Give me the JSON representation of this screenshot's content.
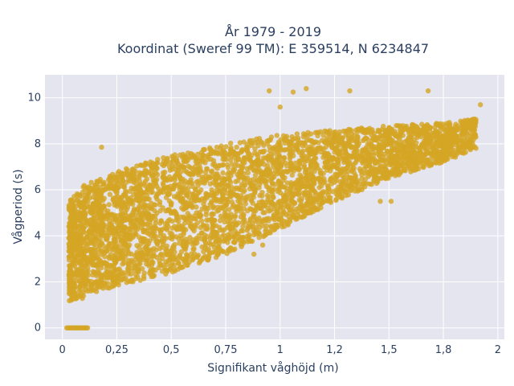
{
  "chart_data": {
    "type": "scatter",
    "title_line1": "År 1979 - 2019",
    "title_line2": "Koordinat (Sweref 99 TM): E 359514, N 6234847",
    "xlabel": "Signifikant våghöjd (m)",
    "ylabel": "Vågperiod (s)",
    "xlim": [
      -0.08,
      2.03
    ],
    "ylim": [
      -0.5,
      11.0
    ],
    "xticks": [
      0,
      0.25,
      0.5,
      0.75,
      1,
      1.25,
      1.5,
      1.75,
      2
    ],
    "xtick_labels": [
      "0",
      "0,25",
      "0,5",
      "0,75",
      "1",
      "1,2",
      "1,5",
      "1,8",
      "2"
    ],
    "yticks": [
      0,
      2,
      4,
      6,
      8,
      10
    ],
    "ytick_labels": [
      "0",
      "2",
      "4",
      "6",
      "8",
      "10"
    ],
    "grid": true,
    "marker_color": "#d4a524",
    "background_color": "#e5e5f0",
    "zero_period_band": {
      "x_min": 0.02,
      "x_max": 0.12,
      "y": 0
    },
    "trend": {
      "x": [
        0.03,
        0.1,
        0.25,
        0.5,
        0.75,
        1.0,
        1.25,
        1.5,
        1.75,
        1.9
      ],
      "y_lower": [
        1.1,
        1.3,
        1.8,
        2.4,
        3.2,
        4.3,
        5.5,
        6.5,
        7.2,
        7.8
      ],
      "y_upper": [
        5.5,
        6.2,
        6.8,
        7.5,
        8.0,
        8.4,
        8.6,
        8.8,
        8.9,
        9.1
      ]
    },
    "outliers": [
      {
        "x": 0.18,
        "y": 7.85
      },
      {
        "x": 0.95,
        "y": 10.3
      },
      {
        "x": 1.0,
        "y": 9.6
      },
      {
        "x": 1.06,
        "y": 10.25
      },
      {
        "x": 1.12,
        "y": 10.4
      },
      {
        "x": 1.32,
        "y": 10.3
      },
      {
        "x": 1.68,
        "y": 10.3
      },
      {
        "x": 1.92,
        "y": 9.7
      },
      {
        "x": 1.51,
        "y": 5.5
      },
      {
        "x": 1.46,
        "y": 5.5
      },
      {
        "x": 1.06,
        "y": 4.9
      },
      {
        "x": 0.92,
        "y": 3.6
      },
      {
        "x": 0.88,
        "y": 3.2
      },
      {
        "x": 0.45,
        "y": 3.15
      },
      {
        "x": 0.62,
        "y": 3.1
      }
    ]
  }
}
